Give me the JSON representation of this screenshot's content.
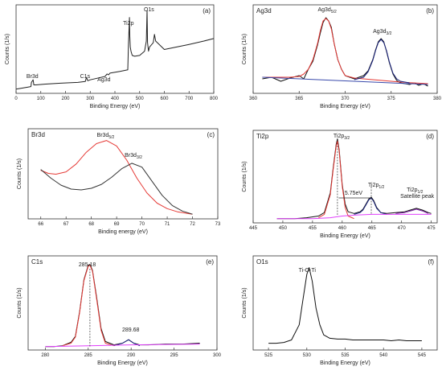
{
  "chart_data": [
    {
      "id": "a",
      "type": "line",
      "panel_label": "(a)",
      "xlabel": "Binding Energy (eV)",
      "ylabel": "Counts (1/s)",
      "xlim": [
        0,
        800
      ],
      "xticks": [
        0,
        100,
        200,
        300,
        400,
        500,
        600,
        700,
        800
      ],
      "annotations": [
        {
          "text": "Br3d",
          "x": 68
        },
        {
          "text": "C1s",
          "x": 285
        },
        {
          "text": "Ag3d",
          "x": 368
        },
        {
          "text": "Ti2p",
          "x": 459
        },
        {
          "text": "O1s",
          "x": 530
        }
      ],
      "series": [
        {
          "color": "#222222",
          "x": [
            0,
            20,
            60,
            62,
            69,
            72,
            80,
            120,
            180,
            250,
            280,
            285,
            290,
            300,
            360,
            368,
            374,
            380,
            420,
            452,
            455,
            459,
            460,
            462,
            465,
            470,
            480,
            500,
            520,
            527,
            530,
            532,
            536,
            540,
            555,
            560,
            565,
            600,
            650,
            700,
            760,
            800
          ],
          "y": [
            0.05,
            0.06,
            0.08,
            0.13,
            0.16,
            0.1,
            0.1,
            0.11,
            0.12,
            0.13,
            0.14,
            0.19,
            0.15,
            0.16,
            0.2,
            0.23,
            0.22,
            0.24,
            0.26,
            0.28,
            0.6,
            0.9,
            0.7,
            0.55,
            0.5,
            0.45,
            0.44,
            0.45,
            0.5,
            0.62,
            0.98,
            0.6,
            0.5,
            0.55,
            0.6,
            0.7,
            0.62,
            0.52,
            0.55,
            0.58,
            0.62,
            0.65
          ]
        }
      ]
    },
    {
      "id": "b",
      "type": "line",
      "panel_label": "(b)",
      "panel_title": "Ag3d",
      "xlabel": "Binding Energy (eV)",
      "ylabel": "Counts (1/s)",
      "xlim": [
        360,
        380
      ],
      "xticks": [
        360,
        365,
        370,
        375,
        380
      ],
      "annotations": [
        {
          "text": "Ag3d",
          "sub": "5/2",
          "x": 367.9
        },
        {
          "text": "Ag3d",
          "sub": "3/2",
          "x": 373.9
        }
      ],
      "series": [
        {
          "color": "#111111",
          "x": [
            361,
            362,
            363,
            364,
            365,
            365.5,
            366,
            366.5,
            367,
            367.3,
            367.6,
            367.9,
            368.2,
            368.5,
            368.8,
            369.2,
            369.6,
            370,
            370.5,
            371,
            371.5,
            372,
            372.5,
            373,
            373.3,
            373.6,
            373.9,
            374.2,
            374.5,
            374.8,
            375.2,
            375.6,
            376,
            376.5,
            377,
            377.5,
            378,
            378.5,
            379
          ],
          "y": [
            0.18,
            0.2,
            0.15,
            0.19,
            0.22,
            0.18,
            0.3,
            0.4,
            0.6,
            0.75,
            0.88,
            0.94,
            0.9,
            0.82,
            0.62,
            0.42,
            0.3,
            0.22,
            0.2,
            0.18,
            0.2,
            0.22,
            0.28,
            0.42,
            0.54,
            0.64,
            0.68,
            0.64,
            0.52,
            0.38,
            0.24,
            0.16,
            0.13,
            0.12,
            0.11,
            0.13,
            0.1,
            0.12,
            0.09
          ]
        },
        {
          "color": "#e53935",
          "x": [
            361,
            364,
            365,
            365.5,
            366,
            366.5,
            367,
            367.3,
            367.6,
            367.9,
            368.2,
            368.5,
            368.8,
            369.2,
            369.6,
            370,
            371,
            372,
            374,
            376,
            379
          ],
          "y": [
            0.2,
            0.2,
            0.21,
            0.24,
            0.3,
            0.42,
            0.62,
            0.78,
            0.9,
            0.93,
            0.9,
            0.8,
            0.62,
            0.42,
            0.3,
            0.22,
            0.19,
            0.18,
            0.16,
            0.14,
            0.12
          ]
        },
        {
          "color": "#1a237e",
          "x": [
            371,
            372,
            372.5,
            373,
            373.3,
            373.6,
            373.9,
            374.2,
            374.5,
            374.8,
            375.2,
            375.6,
            376,
            377
          ],
          "y": [
            0.17,
            0.2,
            0.27,
            0.41,
            0.53,
            0.63,
            0.67,
            0.63,
            0.53,
            0.39,
            0.25,
            0.18,
            0.15,
            0.13
          ]
        },
        {
          "color": "#3949ab",
          "x": [
            361,
            379
          ],
          "y": [
            0.2,
            0.11
          ]
        }
      ]
    },
    {
      "id": "c",
      "type": "line",
      "panel_label": "(c)",
      "panel_title": "Br3d",
      "xlabel": "Binding energy (eV)",
      "ylabel": "Counts (1/s)",
      "xlim": [
        65.5,
        73
      ],
      "xticks": [
        66,
        67,
        68,
        69,
        70,
        71,
        72,
        73
      ],
      "annotations": [
        {
          "text": "Br3d",
          "sub": "5/2",
          "x": 68.6
        },
        {
          "text": "Br3d",
          "sub": "3/2",
          "x": 69.7
        }
      ],
      "series": [
        {
          "color": "#e53935",
          "x": [
            66,
            66.3,
            66.6,
            67,
            67.4,
            67.8,
            68.2,
            68.6,
            69,
            69.4,
            69.8,
            70.2,
            70.6,
            71,
            71.4,
            71.8,
            72
          ],
          "y": [
            0.62,
            0.58,
            0.57,
            0.6,
            0.7,
            0.85,
            0.96,
            1.0,
            0.93,
            0.75,
            0.52,
            0.33,
            0.2,
            0.13,
            0.09,
            0.07,
            0.06
          ]
        },
        {
          "color": "#333333",
          "x": [
            66,
            66.4,
            66.8,
            67.2,
            67.6,
            68,
            68.4,
            68.8,
            69.2,
            69.6,
            70,
            70.4,
            70.8,
            71.2,
            71.6,
            72
          ],
          "y": [
            0.63,
            0.52,
            0.43,
            0.38,
            0.37,
            0.39,
            0.44,
            0.53,
            0.64,
            0.71,
            0.66,
            0.48,
            0.3,
            0.17,
            0.1,
            0.06
          ]
        }
      ]
    },
    {
      "id": "d",
      "type": "line",
      "panel_label": "(d)",
      "panel_title": "Ti2p",
      "xlabel": "Binding Energy (eV)",
      "ylabel": "Counts (1/s)",
      "xlim": [
        445,
        476
      ],
      "xticks": [
        445,
        450,
        455,
        460,
        465,
        470,
        475
      ],
      "annotations": [
        {
          "text": "Ti2p",
          "sub": "3/2",
          "x": 459.2
        },
        {
          "text": "Ti2p",
          "sub": "1/2",
          "x": 464.9
        },
        {
          "text": "Ti2p",
          "sub": "1/2",
          "x": 472.5
        },
        {
          "text": "Satellite peak",
          "x": 472.5
        },
        {
          "text": "5.75eV",
          "x": 461.5
        }
      ],
      "series": [
        {
          "color": "#111111",
          "x": [
            449,
            452,
            454,
            456,
            457,
            458,
            458.5,
            459,
            459.2,
            459.5,
            460,
            460.5,
            461,
            462,
            463,
            463.5,
            464,
            464.5,
            464.9,
            465.3,
            465.8,
            466.5,
            467.5,
            469,
            470.5,
            471.5,
            472.5,
            473.5,
            474.5,
            475
          ],
          "y": [
            0.05,
            0.05,
            0.06,
            0.08,
            0.12,
            0.35,
            0.65,
            0.92,
            0.98,
            0.85,
            0.45,
            0.22,
            0.13,
            0.11,
            0.13,
            0.16,
            0.22,
            0.28,
            0.3,
            0.26,
            0.18,
            0.12,
            0.11,
            0.12,
            0.13,
            0.15,
            0.17,
            0.15,
            0.12,
            0.11
          ]
        },
        {
          "color": "#e53935",
          "x": [
            456,
            457,
            458,
            458.5,
            459,
            459.2,
            459.5,
            460,
            460.5,
            461,
            462
          ],
          "y": [
            0.06,
            0.1,
            0.33,
            0.63,
            0.9,
            0.96,
            0.83,
            0.43,
            0.18,
            0.08,
            0.05
          ]
        },
        {
          "color": "#1a237e",
          "x": [
            462,
            463,
            463.5,
            464,
            464.5,
            464.9,
            465.3,
            465.8,
            466.5,
            467.5
          ],
          "y": [
            0.1,
            0.12,
            0.15,
            0.21,
            0.27,
            0.29,
            0.25,
            0.17,
            0.12,
            0.1
          ]
        },
        {
          "color": "#7b1fa2",
          "x": [
            469,
            470.5,
            471.5,
            472.5,
            473.5,
            474.5
          ],
          "y": [
            0.11,
            0.12,
            0.14,
            0.16,
            0.14,
            0.11
          ]
        },
        {
          "color": "#e040fb",
          "x": [
            449,
            455,
            458,
            459,
            460,
            462,
            465,
            470,
            475
          ],
          "y": [
            0.05,
            0.05,
            0.06,
            0.07,
            0.08,
            0.09,
            0.1,
            0.1,
            0.1
          ]
        }
      ]
    },
    {
      "id": "e",
      "type": "line",
      "panel_label": "(e)",
      "panel_title": "C1s",
      "xlabel": "Binding Energy (eV)",
      "ylabel": "Counts (1/s)",
      "xlim": [
        278,
        300
      ],
      "xticks": [
        280,
        285,
        290,
        295,
        300
      ],
      "annotations": [
        {
          "text": "285.18",
          "x": 285.2
        },
        {
          "text": "289.68",
          "x": 289.7
        }
      ],
      "series": [
        {
          "color": "#111111",
          "x": [
            280,
            281,
            282,
            283,
            283.5,
            284,
            284.5,
            285,
            285.2,
            285.5,
            286,
            286.5,
            287,
            288,
            289,
            289.7,
            290.3,
            291,
            292,
            294,
            296,
            298
          ],
          "y": [
            0.04,
            0.04,
            0.05,
            0.09,
            0.16,
            0.45,
            0.82,
            0.99,
            1.0,
            0.93,
            0.6,
            0.25,
            0.1,
            0.06,
            0.08,
            0.12,
            0.08,
            0.06,
            0.06,
            0.07,
            0.07,
            0.08
          ]
        },
        {
          "color": "#e53935",
          "x": [
            282,
            283,
            283.5,
            284,
            284.5,
            285,
            285.2,
            285.5,
            286,
            286.5,
            287,
            288
          ],
          "y": [
            0.05,
            0.08,
            0.15,
            0.44,
            0.81,
            0.98,
            0.99,
            0.92,
            0.58,
            0.23,
            0.08,
            0.05
          ]
        },
        {
          "color": "#1a237e",
          "x": [
            288,
            289,
            289.7,
            290.3,
            291
          ],
          "y": [
            0.05,
            0.08,
            0.12,
            0.08,
            0.05
          ]
        },
        {
          "color": "#e040fb",
          "x": [
            280,
            285,
            290,
            298
          ],
          "y": [
            0.04,
            0.05,
            0.06,
            0.07
          ]
        }
      ]
    },
    {
      "id": "f",
      "type": "line",
      "panel_label": "(f)",
      "panel_title": "O1s",
      "xlabel": "Binding Energy (eV)",
      "ylabel": "Counts (1/s)",
      "xlim": [
        523,
        547
      ],
      "xticks": [
        525,
        530,
        535,
        540,
        545
      ],
      "annotations": [
        {
          "text": "Ti-O-Ti",
          "x": 530.3
        }
      ],
      "series": [
        {
          "color": "#111111",
          "x": [
            525,
            526,
            527,
            528,
            529,
            529.5,
            530,
            530.3,
            530.7,
            531.2,
            531.7,
            532.2,
            533,
            534,
            535,
            536,
            537,
            538,
            539,
            540,
            541,
            542,
            543,
            544,
            545
          ],
          "y": [
            0.08,
            0.08,
            0.09,
            0.12,
            0.3,
            0.6,
            0.9,
            0.98,
            0.82,
            0.5,
            0.3,
            0.18,
            0.14,
            0.13,
            0.13,
            0.12,
            0.12,
            0.12,
            0.12,
            0.12,
            0.11,
            0.12,
            0.11,
            0.11,
            0.11
          ]
        }
      ]
    }
  ]
}
